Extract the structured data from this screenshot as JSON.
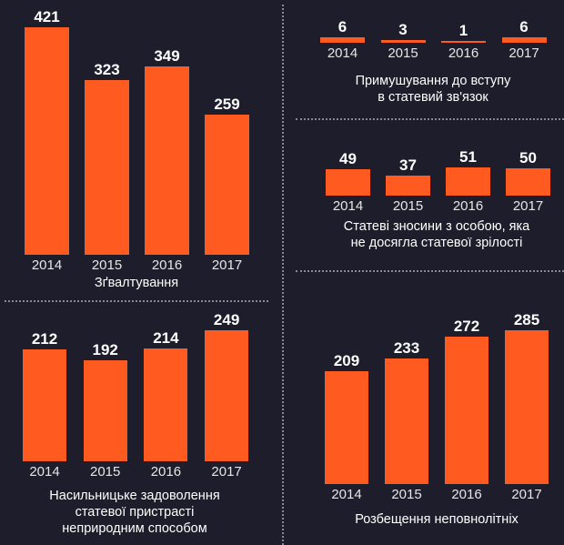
{
  "colors": {
    "background": "#1e1d2b",
    "bar": "#ff5a1f",
    "text": "#ffffff"
  },
  "chart_data": [
    {
      "type": "bar",
      "title": [
        "Зґвалтування"
      ],
      "categories": [
        "2014",
        "2015",
        "2016",
        "2017"
      ],
      "values": [
        421,
        323,
        349,
        259
      ]
    },
    {
      "type": "bar",
      "title": [
        "Примушування до вступу",
        "в статевий зв'язок"
      ],
      "categories": [
        "2014",
        "2015",
        "2016",
        "2017"
      ],
      "values": [
        6,
        3,
        1,
        6
      ]
    },
    {
      "type": "bar",
      "title": [
        "Статеві зносини з особою, яка",
        "не досягла статевої зрілості"
      ],
      "categories": [
        "2014",
        "2015",
        "2016",
        "2017"
      ],
      "values": [
        49,
        37,
        51,
        50
      ]
    },
    {
      "type": "bar",
      "title": [
        "Насильницьке задоволення",
        "статевої пристрасті",
        "неприродним способом"
      ],
      "categories": [
        "2014",
        "2015",
        "2016",
        "2017"
      ],
      "values": [
        212,
        192,
        214,
        249
      ]
    },
    {
      "type": "bar",
      "title": [
        "Розбещення неповнолітніх"
      ],
      "categories": [
        "2014",
        "2015",
        "2016",
        "2017"
      ],
      "values": [
        209,
        233,
        272,
        285
      ]
    }
  ]
}
